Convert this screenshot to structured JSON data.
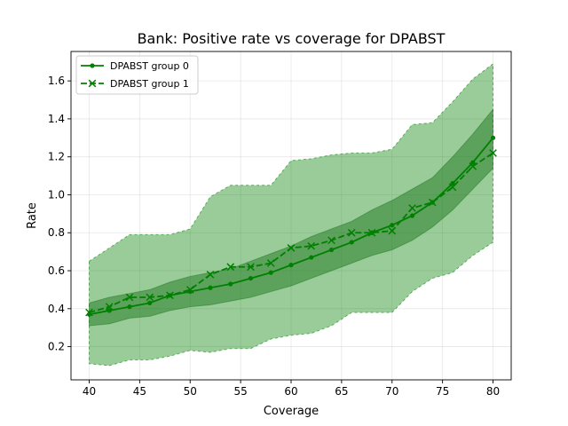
{
  "chart_data": {
    "type": "line",
    "title": "Bank: Positive rate vs coverage for DPABST",
    "xlabel": "Coverage",
    "ylabel": "Rate",
    "xlim": [
      38.2,
      81.8
    ],
    "ylim": [
      0.025,
      1.755
    ],
    "xticks": [
      40,
      45,
      50,
      55,
      60,
      65,
      70,
      75,
      80
    ],
    "yticks": [
      0.2,
      0.4,
      0.6,
      0.8,
      1.0,
      1.2,
      1.4,
      1.6
    ],
    "grid": true,
    "legend_position": "top-left",
    "colors": {
      "line": "#008000",
      "band_outer": "#3cb043",
      "band_inner": "#2e8b2e"
    },
    "x": [
      40,
      42,
      44,
      46,
      48,
      50,
      52,
      54,
      56,
      58,
      60,
      62,
      64,
      66,
      68,
      70,
      72,
      74,
      76,
      78,
      80
    ],
    "series": [
      {
        "name": "DPABST group 0",
        "marker": "dot",
        "linestyle": "solid",
        "values": [
          0.37,
          0.39,
          0.41,
          0.43,
          0.47,
          0.49,
          0.51,
          0.53,
          0.56,
          0.59,
          0.63,
          0.67,
          0.71,
          0.75,
          0.8,
          0.84,
          0.89,
          0.96,
          1.06,
          1.17,
          1.3
        ],
        "band_lower": [
          0.31,
          0.32,
          0.35,
          0.36,
          0.39,
          0.41,
          0.42,
          0.44,
          0.46,
          0.49,
          0.52,
          0.56,
          0.6,
          0.64,
          0.68,
          0.71,
          0.76,
          0.83,
          0.92,
          1.03,
          1.14
        ],
        "band_upper": [
          0.43,
          0.46,
          0.48,
          0.5,
          0.54,
          0.57,
          0.59,
          0.61,
          0.65,
          0.69,
          0.73,
          0.78,
          0.82,
          0.86,
          0.92,
          0.97,
          1.03,
          1.09,
          1.2,
          1.32,
          1.45
        ]
      },
      {
        "name": "DPABST group 1",
        "marker": "x",
        "linestyle": "dashed",
        "values": [
          0.38,
          0.41,
          0.46,
          0.46,
          0.47,
          0.5,
          0.58,
          0.62,
          0.62,
          0.64,
          0.72,
          0.73,
          0.76,
          0.8,
          0.8,
          0.81,
          0.93,
          0.96,
          1.04,
          1.15,
          1.22
        ],
        "band_lower": [
          0.11,
          0.1,
          0.13,
          0.13,
          0.15,
          0.18,
          0.17,
          0.19,
          0.19,
          0.24,
          0.26,
          0.27,
          0.31,
          0.38,
          0.38,
          0.38,
          0.49,
          0.56,
          0.59,
          0.68,
          0.75
        ],
        "band_upper": [
          0.65,
          0.72,
          0.79,
          0.79,
          0.79,
          0.82,
          0.99,
          1.05,
          1.05,
          1.05,
          1.18,
          1.19,
          1.21,
          1.22,
          1.22,
          1.24,
          1.37,
          1.38,
          1.49,
          1.61,
          1.69
        ]
      }
    ]
  }
}
